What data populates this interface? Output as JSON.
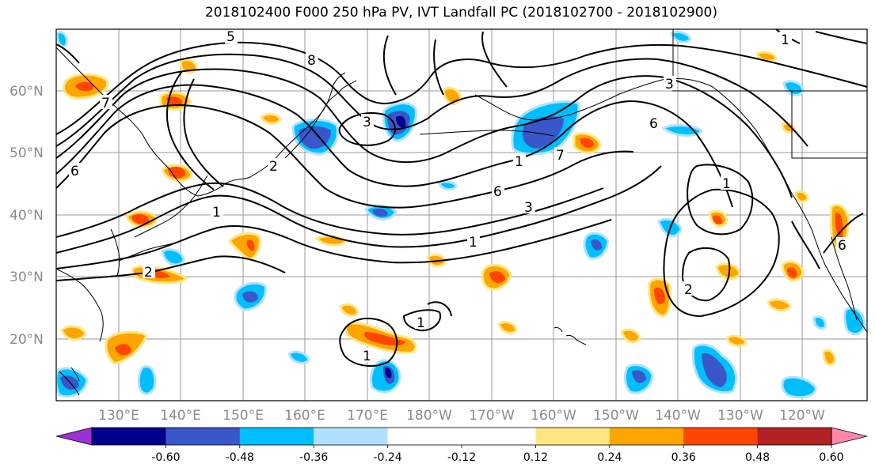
{
  "title": "2018102400 F000 250 hPa PV, IVT Landfall PC (2018102700 - 2018102900)",
  "lat_labels": [
    "60°N",
    "50°N",
    "40°N",
    "30°N",
    "20°N"
  ],
  "lon_labels": [
    "130°E",
    "140°E",
    "150°E",
    "160°E",
    "170°E",
    "180°W",
    "170°W",
    "160°W",
    "150°W",
    "140°W",
    "130°W",
    "120°W"
  ],
  "colorbar": {
    "colors": [
      "#9b30d3",
      "#00008b",
      "#3a57c9",
      "#00bfff",
      "#b0e2ff",
      "#ffffff",
      "#ffffff",
      "#ffe680",
      "#ffa500",
      "#ff4500",
      "#b22222",
      "#ff88aa"
    ],
    "tick_labels": [
      "-0.60",
      "-0.48",
      "-0.36",
      "-0.24",
      "-0.12",
      "0.12",
      "0.24",
      "0.36",
      "0.48",
      "0.60"
    ]
  },
  "contour_labels": [
    "5",
    "8",
    "6",
    "3",
    "6",
    "7",
    "3",
    "1",
    "6",
    "3",
    "1",
    "2",
    "2",
    "1",
    "1",
    "2",
    "1",
    "1",
    "7",
    "1",
    "6"
  ]
}
